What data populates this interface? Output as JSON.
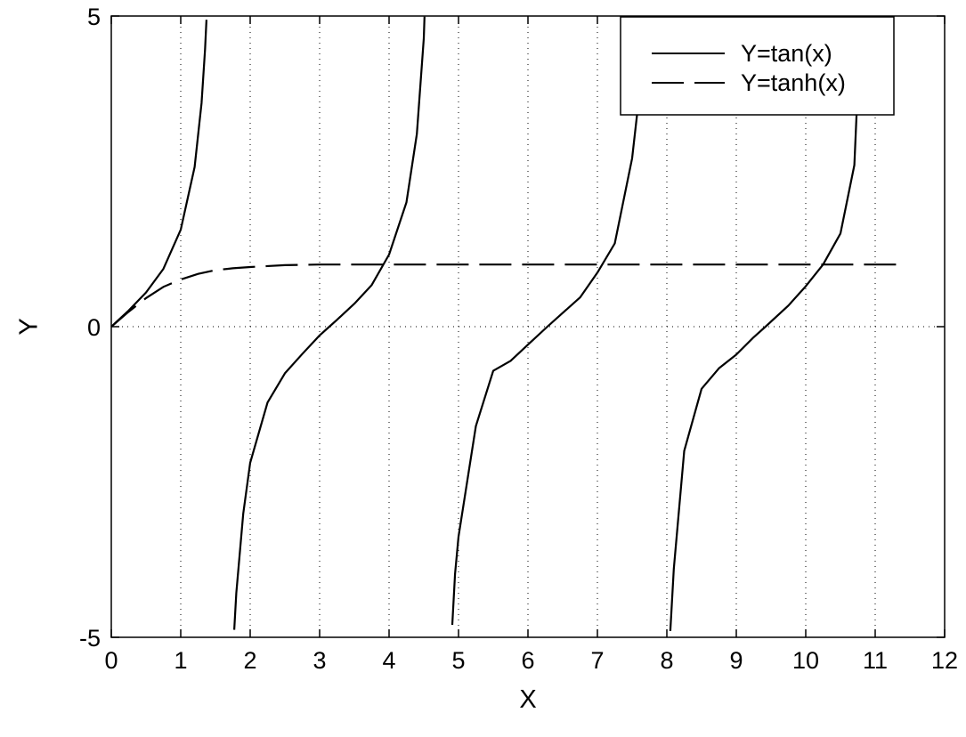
{
  "chart_data": {
    "type": "line",
    "title": "",
    "xlabel": "X",
    "ylabel": "Y",
    "xlim": [
      0,
      12
    ],
    "ylim": [
      -5,
      5
    ],
    "x_ticks": [
      "0",
      "1",
      "2",
      "3",
      "4",
      "5",
      "6",
      "7",
      "8",
      "9",
      "10",
      "11",
      "12"
    ],
    "y_ticks": [
      "-5",
      "0",
      "5"
    ],
    "grid": "dotted",
    "legend_position": "top-right",
    "series": [
      {
        "name": "Y=tan(x)",
        "style": "solid",
        "color": "#000000",
        "x": [
          0,
          0.25,
          0.5,
          0.75,
          1.0,
          1.2,
          1.3,
          1.35,
          1.37,
          1.77,
          1.8,
          1.9,
          2.0,
          2.25,
          2.5,
          2.75,
          3.0,
          3.14,
          3.25,
          3.5,
          3.75,
          4.0,
          4.25,
          4.4,
          4.5,
          4.51,
          4.91,
          4.95,
          5.0,
          5.25,
          5.5,
          5.75,
          6.0,
          6.28,
          6.5,
          6.75,
          7.0,
          7.25,
          7.5,
          7.6,
          7.65,
          8.05,
          8.1,
          8.25,
          8.5,
          8.75,
          9.0,
          9.25,
          9.42,
          9.75,
          10.0,
          10.25,
          10.5,
          10.7,
          10.79
        ],
        "y": [
          0,
          0.26,
          0.55,
          0.93,
          1.56,
          2.57,
          3.6,
          4.46,
          4.94,
          -4.88,
          -4.29,
          -3.01,
          -2.19,
          -1.22,
          -0.75,
          -0.44,
          -0.14,
          0.0,
          0.11,
          0.37,
          0.67,
          1.16,
          2.0,
          3.1,
          4.64,
          4.99,
          -4.8,
          -3.98,
          -3.38,
          -1.6,
          -0.71,
          -0.55,
          -0.29,
          0.0,
          0.22,
          0.47,
          0.87,
          1.34,
          2.71,
          3.7,
          4.79,
          -4.9,
          -3.9,
          -2.0,
          -1.0,
          -0.67,
          -0.45,
          -0.17,
          0.0,
          0.34,
          0.65,
          1.0,
          1.5,
          2.6,
          4.9
        ]
      },
      {
        "name": "Y=tanh(x)",
        "style": "dashed",
        "color": "#000000",
        "x": [
          0,
          0.25,
          0.5,
          0.75,
          1.0,
          1.25,
          1.5,
          1.75,
          2.0,
          2.5,
          3.0,
          4.0,
          5.0,
          6.0,
          8.0,
          10.0,
          11.4
        ],
        "y": [
          0,
          0.24,
          0.46,
          0.64,
          0.76,
          0.85,
          0.91,
          0.94,
          0.96,
          0.99,
          1.0,
          1.0,
          1.0,
          1.0,
          1.0,
          1.0,
          1.0
        ]
      }
    ]
  }
}
